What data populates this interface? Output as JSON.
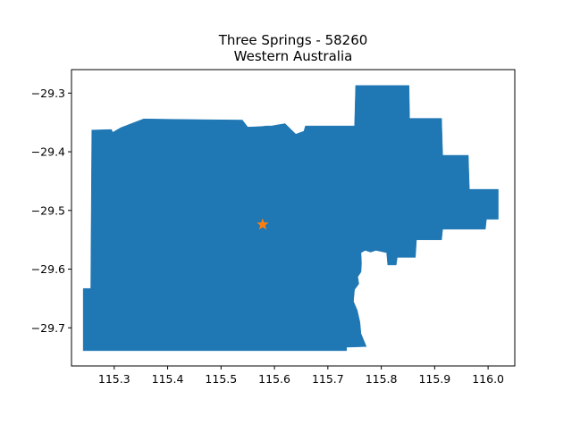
{
  "title_line1": "Three Springs - 58260",
  "title_line2": "Western Australia",
  "colors": {
    "region_fill": "#1f77b4",
    "marker": "#ff7f0e",
    "axes": "#000000",
    "background": "#ffffff"
  },
  "marker_icon": "star",
  "chart_data": {
    "type": "map",
    "title": "Three Springs - 58260\nWestern Australia",
    "xlim": [
      115.22,
      116.05
    ],
    "ylim": [
      -29.765,
      -29.26
    ],
    "x_ticks": [
      115.3,
      115.4,
      115.5,
      115.6,
      115.7,
      115.8,
      115.9,
      116.0
    ],
    "x_tick_labels": [
      "115.3",
      "115.4",
      "115.5",
      "115.6",
      "115.7",
      "115.8",
      "115.9",
      "116.0"
    ],
    "y_ticks": [
      -29.3,
      -29.4,
      -29.5,
      -29.6,
      -29.7
    ],
    "y_tick_labels": [
      "−29.3",
      "−29.4",
      "−29.5",
      "−29.6",
      "−29.7"
    ],
    "grid": false,
    "marker_point": {
      "lon": 115.578,
      "lat": -29.524
    },
    "region_outline": [
      [
        115.258,
        -29.363
      ],
      [
        115.295,
        -29.362
      ],
      [
        115.297,
        -29.367
      ],
      [
        115.312,
        -29.359
      ],
      [
        115.355,
        -29.344
      ],
      [
        115.44,
        -29.345
      ],
      [
        115.54,
        -29.346
      ],
      [
        115.55,
        -29.358
      ],
      [
        115.575,
        -29.357
      ],
      [
        115.585,
        -29.356
      ],
      [
        115.595,
        -29.356
      ],
      [
        115.6,
        -29.355
      ],
      [
        115.62,
        -29.352
      ],
      [
        115.64,
        -29.37
      ],
      [
        115.655,
        -29.365
      ],
      [
        115.658,
        -29.356
      ],
      [
        115.75,
        -29.356
      ],
      [
        115.752,
        -29.287
      ],
      [
        115.852,
        -29.287
      ],
      [
        115.853,
        -29.343
      ],
      [
        115.913,
        -29.343
      ],
      [
        115.915,
        -29.406
      ],
      [
        115.963,
        -29.406
      ],
      [
        115.965,
        -29.464
      ],
      [
        116.019,
        -29.464
      ],
      [
        116.019,
        -29.515
      ],
      [
        115.997,
        -29.515
      ],
      [
        115.995,
        -29.532
      ],
      [
        115.915,
        -29.532
      ],
      [
        115.913,
        -29.55
      ],
      [
        115.866,
        -29.55
      ],
      [
        115.864,
        -29.58
      ],
      [
        115.83,
        -29.58
      ],
      [
        115.828,
        -29.593
      ],
      [
        115.812,
        -29.593
      ],
      [
        115.81,
        -29.572
      ],
      [
        115.8,
        -29.57
      ],
      [
        115.79,
        -29.568
      ],
      [
        115.78,
        -29.571
      ],
      [
        115.77,
        -29.568
      ],
      [
        115.762,
        -29.572
      ],
      [
        115.763,
        -29.59
      ],
      [
        115.762,
        -29.605
      ],
      [
        115.756,
        -29.613
      ],
      [
        115.758,
        -29.625
      ],
      [
        115.75,
        -29.635
      ],
      [
        115.748,
        -29.655
      ],
      [
        115.755,
        -29.67
      ],
      [
        115.76,
        -29.69
      ],
      [
        115.762,
        -29.71
      ],
      [
        115.772,
        -29.732
      ],
      [
        115.735,
        -29.733
      ],
      [
        115.735,
        -29.739
      ],
      [
        115.242,
        -29.739
      ],
      [
        115.242,
        -29.633
      ],
      [
        115.256,
        -29.633
      ]
    ]
  }
}
